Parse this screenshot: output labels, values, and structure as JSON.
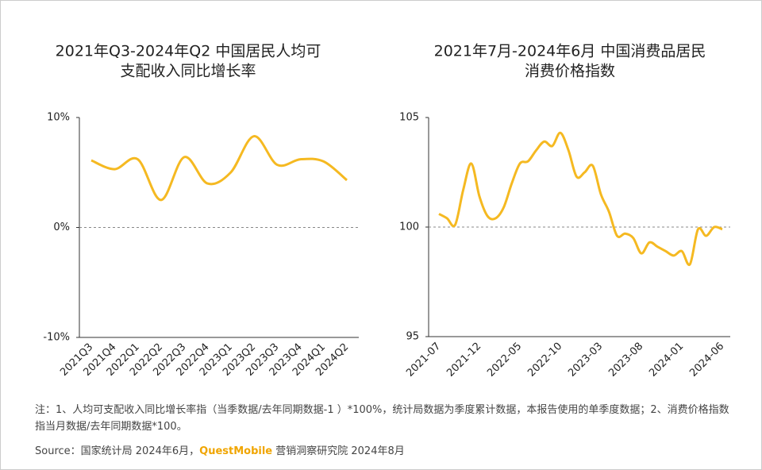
{
  "chart_data": [
    {
      "type": "line",
      "title": [
        "2021年Q3-2024年Q2 中国居民人均可",
        "支配收入同比增长率"
      ],
      "categories": [
        "2021Q3",
        "2021Q4",
        "2022Q1",
        "2022Q2",
        "2022Q3",
        "2022Q4",
        "2023Q1",
        "2023Q2",
        "2023Q3",
        "2023Q4",
        "2024Q1",
        "2024Q2"
      ],
      "series": [
        {
          "color": "#f5b921",
          "values": [
            6.1,
            5.3,
            6.2,
            2.5,
            6.4,
            4.0,
            5.0,
            8.3,
            5.7,
            6.2,
            6.0,
            4.3
          ]
        }
      ],
      "ylim": [
        -10,
        10
      ],
      "yticks": [
        {
          "value": -10,
          "label": "-10%"
        },
        {
          "value": 0,
          "label": "0%"
        },
        {
          "value": 10,
          "label": "10%"
        }
      ],
      "reference_line": 0
    },
    {
      "type": "line",
      "title": [
        "2021年7月-2024年6月 中国消费品居民",
        "消费价格指数"
      ],
      "categories": [
        "2021-07",
        null,
        null,
        null,
        null,
        "2021-12",
        null,
        null,
        null,
        null,
        "2022-05",
        null,
        null,
        null,
        null,
        "2022-10",
        null,
        null,
        null,
        null,
        "2023-03",
        null,
        null,
        null,
        null,
        "2023-08",
        null,
        null,
        null,
        null,
        "2024-01",
        null,
        null,
        null,
        null,
        "2024-06"
      ],
      "series": [
        {
          "color": "#f5b921",
          "values": [
            100.6,
            100.4,
            100.1,
            101.7,
            102.9,
            101.4,
            100.5,
            100.4,
            100.9,
            102.0,
            102.9,
            103.0,
            103.5,
            103.9,
            103.7,
            104.3,
            103.5,
            102.3,
            102.5,
            102.8,
            101.5,
            100.7,
            99.6,
            99.7,
            99.5,
            98.8,
            99.3,
            99.1,
            98.9,
            98.7,
            98.9,
            98.3,
            99.9,
            99.6,
            100.0,
            99.9
          ]
        }
      ],
      "ylim": [
        95,
        105
      ],
      "yticks": [
        95,
        100,
        105
      ],
      "reference_line": 100
    }
  ],
  "notes": "注：1、人均可支配收入同比增长率指（当季数据/去年同期数据-1 ）*100%，统计局数据为季度累计数据，本报告使用的单季度数据；2、消费价格指数指当月数据/去年同期数据*100。",
  "source": {
    "prefix": "Source：国家统计局 2024年6月，",
    "brand": "QuestMobile",
    "suffix": " 营销洞察研究院 2024年8月"
  }
}
